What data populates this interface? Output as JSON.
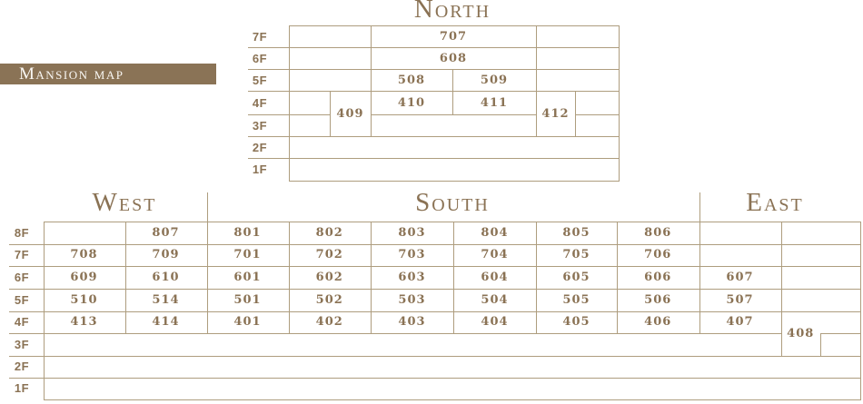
{
  "banner": {
    "label": "Mansion map"
  },
  "colors": {
    "banner_bg": "#8a7356",
    "banner_text": "#f9f7f3",
    "line": "#ae9d7e",
    "text": "#8a7254"
  },
  "north": {
    "title": "North",
    "floors": [
      "7F",
      "6F",
      "5F",
      "4F",
      "3F",
      "2F",
      "1F"
    ],
    "rooms": {
      "r707": "707",
      "r608": "608",
      "r508": "508",
      "r509": "509",
      "r409": "409",
      "r410": "410",
      "r411": "411",
      "r412": "412"
    }
  },
  "lower": {
    "floors": [
      "8F",
      "7F",
      "6F",
      "5F",
      "4F",
      "3F",
      "2F",
      "1F"
    ],
    "west": {
      "title": "West",
      "rooms": {
        "r807": "807",
        "r708": "708",
        "r709": "709",
        "r609": "609",
        "r610": "610",
        "r510": "510",
        "r514": "514",
        "r413": "413",
        "r414": "414"
      }
    },
    "south": {
      "title": "South",
      "rooms": {
        "r801": "801",
        "r802": "802",
        "r803": "803",
        "r804": "804",
        "r805": "805",
        "r806": "806",
        "r701": "701",
        "r702": "702",
        "r703": "703",
        "r704": "704",
        "r705": "705",
        "r706": "706",
        "r601": "601",
        "r602": "602",
        "r603": "603",
        "r604": "604",
        "r605": "605",
        "r606": "606",
        "r501": "501",
        "r502": "502",
        "r503": "503",
        "r504": "504",
        "r505": "505",
        "r506": "506",
        "r401": "401",
        "r402": "402",
        "r403": "403",
        "r404": "404",
        "r405": "405",
        "r406": "406"
      }
    },
    "east": {
      "title": "East",
      "rooms": {
        "r607": "607",
        "r507": "507",
        "r407": "407",
        "r408": "408"
      }
    }
  }
}
